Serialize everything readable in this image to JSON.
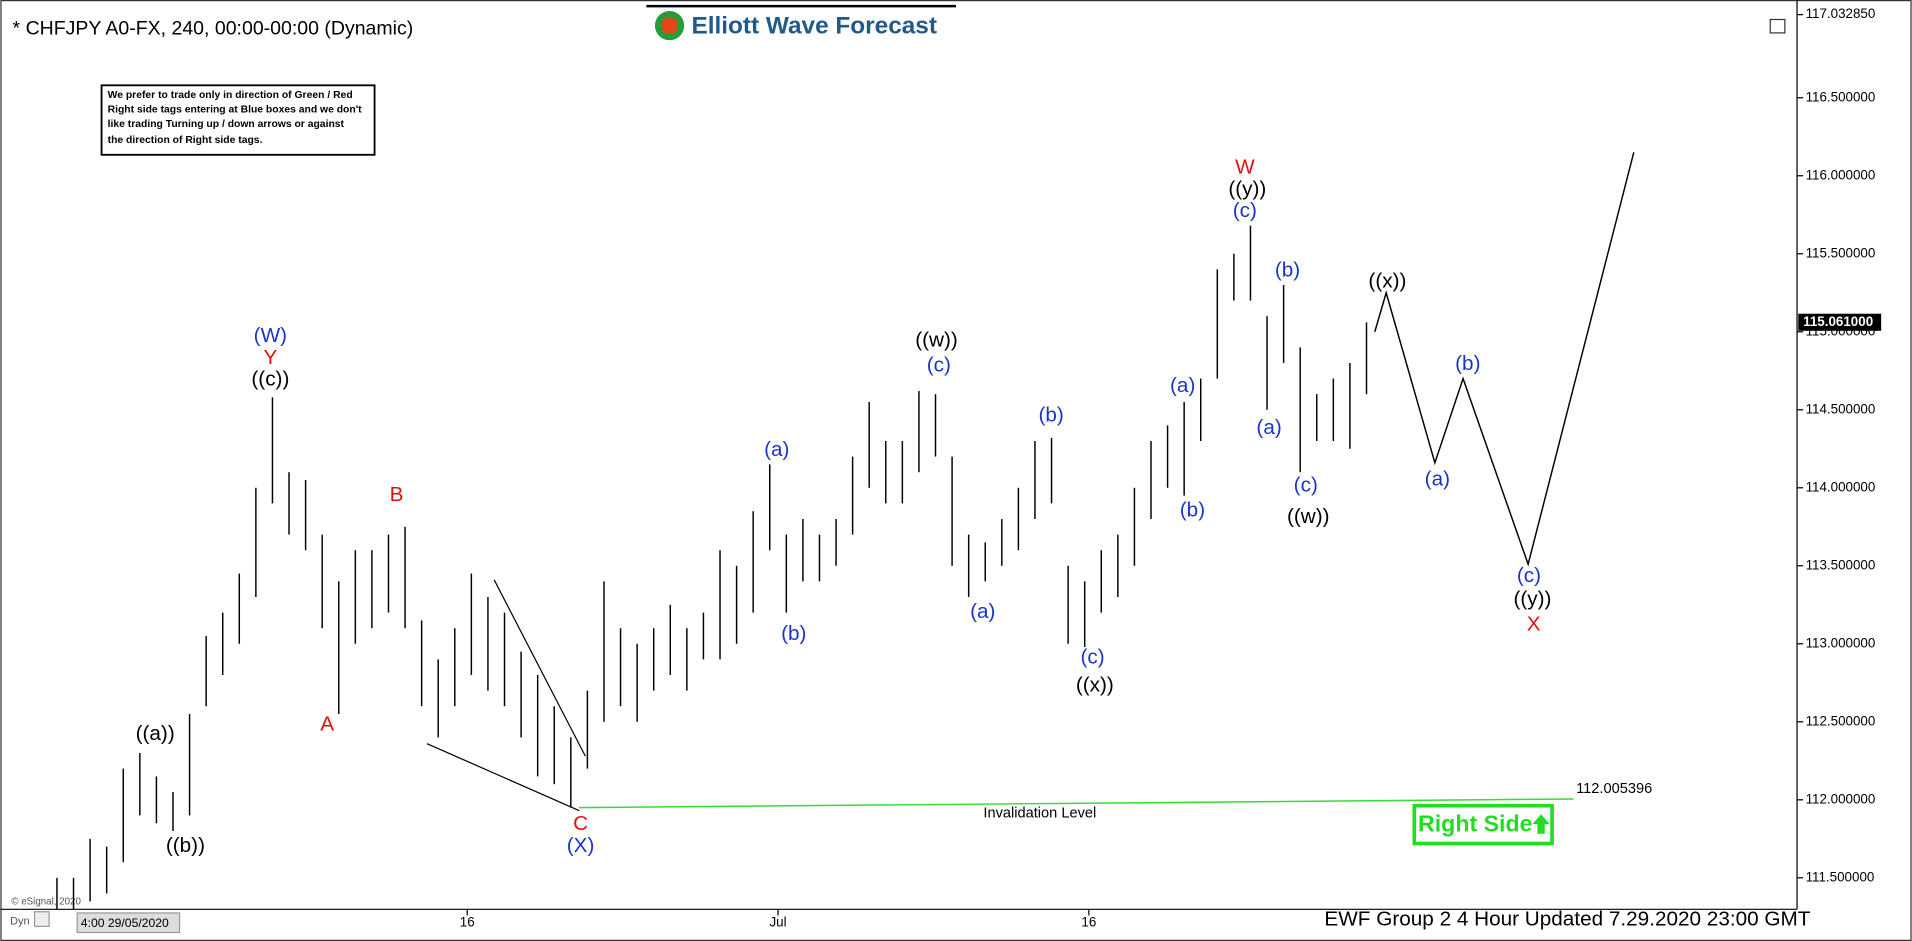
{
  "page": {
    "logo": "Elliott Wave Forecast",
    "footer": "EWF Group 2 4 Hour Updated 7.29.2020 23:00 GMT",
    "copyright": "© eSignal, 2020",
    "mode": "Dyn",
    "cursor_label": "4:00 29/05/2020",
    "right_side": "Right Side",
    "note_lines": [
      "We prefer to trade only in direction of Green / Red",
      "Right side tags entering at Blue boxes and we don't",
      "like trading Turning up / down arrows or against",
      "the direction of Right side tags."
    ]
  },
  "chart_data": {
    "type": "ohlc",
    "title": "* CHFJPY A0-FX, 240, 00:00-00:00 (Dynamic)",
    "color": "#000000",
    "xlim": [
      -4.06,
      82.12
    ],
    "ylim": [
      111.306,
      117.03285
    ],
    "xticks": [
      {
        "value": 18,
        "label": "16"
      },
      {
        "value": 33,
        "label": "Jul"
      },
      {
        "value": 48,
        "label": "16"
      }
    ],
    "yticks": [
      {
        "value": 111.5,
        "label": "111.500000"
      },
      {
        "value": 112,
        "label": "112.000000"
      },
      {
        "value": 112.5,
        "label": "112.500000"
      },
      {
        "value": 113,
        "label": "113.000000"
      },
      {
        "value": 113.5,
        "label": "113.500000"
      },
      {
        "value": 114,
        "label": "114.000000"
      },
      {
        "value": 114.5,
        "label": "114.500000"
      },
      {
        "value": 115,
        "label": "115.000000"
      },
      {
        "value": 115.5,
        "label": "115.500000"
      },
      {
        "value": 116,
        "label": "116.000000"
      },
      {
        "value": 116.5,
        "label": "116.500000"
      },
      {
        "value": 117.03285,
        "label": "117.032850"
      }
    ],
    "current_price": {
      "value": 115.061,
      "label": "115.061000"
    },
    "x": [
      -1.8,
      -1.0,
      -0.2,
      0.6,
      1.4,
      2.2,
      3.0,
      3.8,
      4.6,
      5.4,
      6.2,
      7.0,
      7.8,
      8.6,
      9.4,
      10.2,
      11.0,
      11.8,
      12.6,
      13.4,
      14.2,
      15.0,
      15.8,
      16.6,
      17.4,
      18.2,
      19.0,
      19.8,
      20.6,
      21.4,
      22.2,
      23.0,
      23.8,
      24.6,
      25.4,
      26.2,
      27.0,
      27.8,
      28.6,
      29.4,
      30.2,
      31.0,
      31.8,
      32.6,
      33.4,
      34.2,
      35.0,
      35.8,
      36.6,
      37.4,
      38.2,
      39.0,
      39.8,
      40.6,
      41.4,
      42.2,
      43.0,
      43.8,
      44.6,
      45.4,
      46.2,
      47.0,
      47.8,
      48.6,
      49.4,
      50.2,
      51.0,
      51.8,
      52.6,
      53.4,
      54.2,
      55.0,
      55.8,
      56.6,
      57.4,
      58.2,
      59.0,
      59.8,
      60.6,
      61.4
    ],
    "highs": [
      111.5,
      111.5,
      111.75,
      111.7,
      112.2,
      112.3,
      112.15,
      112.05,
      112.55,
      113.05,
      113.2,
      113.45,
      114.0,
      114.58,
      114.1,
      114.05,
      113.7,
      113.4,
      113.6,
      113.6,
      113.7,
      113.75,
      113.15,
      112.9,
      113.1,
      113.45,
      113.3,
      113.2,
      112.95,
      112.8,
      112.6,
      112.4,
      112.7,
      113.4,
      113.1,
      113.0,
      113.1,
      113.25,
      113.1,
      113.2,
      113.6,
      113.5,
      113.85,
      114.15,
      113.7,
      113.8,
      113.7,
      113.8,
      114.2,
      114.55,
      114.3,
      114.3,
      114.62,
      114.6,
      114.2,
      113.7,
      113.65,
      113.8,
      114.0,
      114.3,
      114.32,
      113.5,
      113.4,
      113.6,
      113.7,
      114.0,
      114.3,
      114.4,
      114.55,
      114.7,
      115.4,
      115.5,
      115.68,
      115.1,
      115.3,
      114.9,
      114.6,
      114.7,
      114.8,
      115.06
    ],
    "lows": [
      111.3,
      111.3,
      111.35,
      111.4,
      111.6,
      111.9,
      111.85,
      111.8,
      111.9,
      112.6,
      112.8,
      113.0,
      113.3,
      113.9,
      113.7,
      113.6,
      113.1,
      112.55,
      113.0,
      113.1,
      113.2,
      113.1,
      112.6,
      112.4,
      112.6,
      112.8,
      112.7,
      112.6,
      112.4,
      112.15,
      112.1,
      111.95,
      112.2,
      112.5,
      112.6,
      112.5,
      112.7,
      112.8,
      112.7,
      112.9,
      112.9,
      113.0,
      113.2,
      113.6,
      113.2,
      113.4,
      113.4,
      113.5,
      113.7,
      114.0,
      113.9,
      113.9,
      114.1,
      114.2,
      113.5,
      113.3,
      113.4,
      113.5,
      113.6,
      113.8,
      113.9,
      113.0,
      112.98,
      113.2,
      113.3,
      113.5,
      113.8,
      114.0,
      113.95,
      114.3,
      114.7,
      115.2,
      115.2,
      114.5,
      114.8,
      114.1,
      114.3,
      114.3,
      114.25,
      114.6
    ],
    "projection": {
      "color": "#000000",
      "x": [
        61.8,
        62.35,
        64.7,
        66.06,
        69.2,
        74.3
      ],
      "values": [
        115.0,
        115.25,
        114.16,
        114.7,
        113.51,
        116.15
      ]
    },
    "trendlines": [
      {
        "color": "#000000",
        "x": [
          16.06,
          23.41
        ],
        "values": [
          112.36,
          111.93
        ]
      },
      {
        "color": "#000000",
        "x": [
          19.3,
          23.7
        ],
        "values": [
          113.41,
          112.28
        ]
      }
    ],
    "invalidation": {
      "label": "Invalidation Level",
      "color": "#33dd33",
      "x": [
        23.4,
        71.4
      ],
      "values": [
        111.95,
        112.005396
      ]
    },
    "annotations": [
      {
        "text": "(W)",
        "x": 8.5,
        "y": 114.97,
        "color": "#1a34c8"
      },
      {
        "text": "Y",
        "x": 8.5,
        "y": 114.83,
        "color": "#e01010"
      },
      {
        "text": "((c))",
        "x": 8.5,
        "y": 114.69,
        "color": "#000000"
      },
      {
        "text": "((a))",
        "x": 2.94,
        "y": 112.42,
        "color": "#000000"
      },
      {
        "text": "((b))",
        "x": 4.4,
        "y": 111.7,
        "color": "#000000"
      },
      {
        "text": "A",
        "x": 11.24,
        "y": 112.48,
        "color": "#e01010"
      },
      {
        "text": "B",
        "x": 14.59,
        "y": 113.95,
        "color": "#e01010"
      },
      {
        "text": "C",
        "x": 23.47,
        "y": 111.84,
        "color": "#e01010"
      },
      {
        "text": "(X)",
        "x": 23.47,
        "y": 111.7,
        "color": "#1a34c8"
      },
      {
        "text": "(a)",
        "x": 32.94,
        "y": 114.24,
        "color": "#1a34c8"
      },
      {
        "text": "(b)",
        "x": 33.76,
        "y": 113.06,
        "color": "#1a34c8"
      },
      {
        "text": "((w))",
        "x": 40.65,
        "y": 114.94,
        "color": "#000000"
      },
      {
        "text": "(c)",
        "x": 40.76,
        "y": 114.78,
        "color": "#1a34c8"
      },
      {
        "text": "(a)",
        "x": 42.88,
        "y": 113.2,
        "color": "#1a34c8"
      },
      {
        "text": "(b)",
        "x": 46.18,
        "y": 114.46,
        "color": "#1a34c8"
      },
      {
        "text": "(c)",
        "x": 48.18,
        "y": 112.91,
        "color": "#1a34c8"
      },
      {
        "text": "((x))",
        "x": 48.29,
        "y": 112.73,
        "color": "#000000"
      },
      {
        "text": "(a)",
        "x": 52.53,
        "y": 114.65,
        "color": "#1a34c8"
      },
      {
        "text": "(b)",
        "x": 53.0,
        "y": 113.85,
        "color": "#1a34c8"
      },
      {
        "text": "W",
        "x": 55.53,
        "y": 116.05,
        "color": "#e01010"
      },
      {
        "text": "((y))",
        "x": 55.65,
        "y": 115.91,
        "color": "#000000"
      },
      {
        "text": "(c)",
        "x": 55.53,
        "y": 115.77,
        "color": "#1a34c8"
      },
      {
        "text": "(b)",
        "x": 57.59,
        "y": 115.39,
        "color": "#1a34c8"
      },
      {
        "text": "(a)",
        "x": 56.7,
        "y": 114.38,
        "color": "#1a34c8"
      },
      {
        "text": "(c)",
        "x": 58.47,
        "y": 114.01,
        "color": "#1a34c8"
      },
      {
        "text": "((w))",
        "x": 58.59,
        "y": 113.81,
        "color": "#000000"
      },
      {
        "text": "((x))",
        "x": 62.41,
        "y": 115.32,
        "color": "#000000"
      },
      {
        "text": "(a)",
        "x": 64.82,
        "y": 114.05,
        "color": "#1a34c8"
      },
      {
        "text": "(b)",
        "x": 66.29,
        "y": 114.79,
        "color": "#1a34c8"
      },
      {
        "text": "(c)",
        "x": 69.24,
        "y": 113.43,
        "color": "#1a34c8"
      },
      {
        "text": "((y))",
        "x": 69.41,
        "y": 113.28,
        "color": "#000000"
      },
      {
        "text": "X",
        "x": 69.47,
        "y": 113.12,
        "color": "#e01010"
      }
    ]
  }
}
